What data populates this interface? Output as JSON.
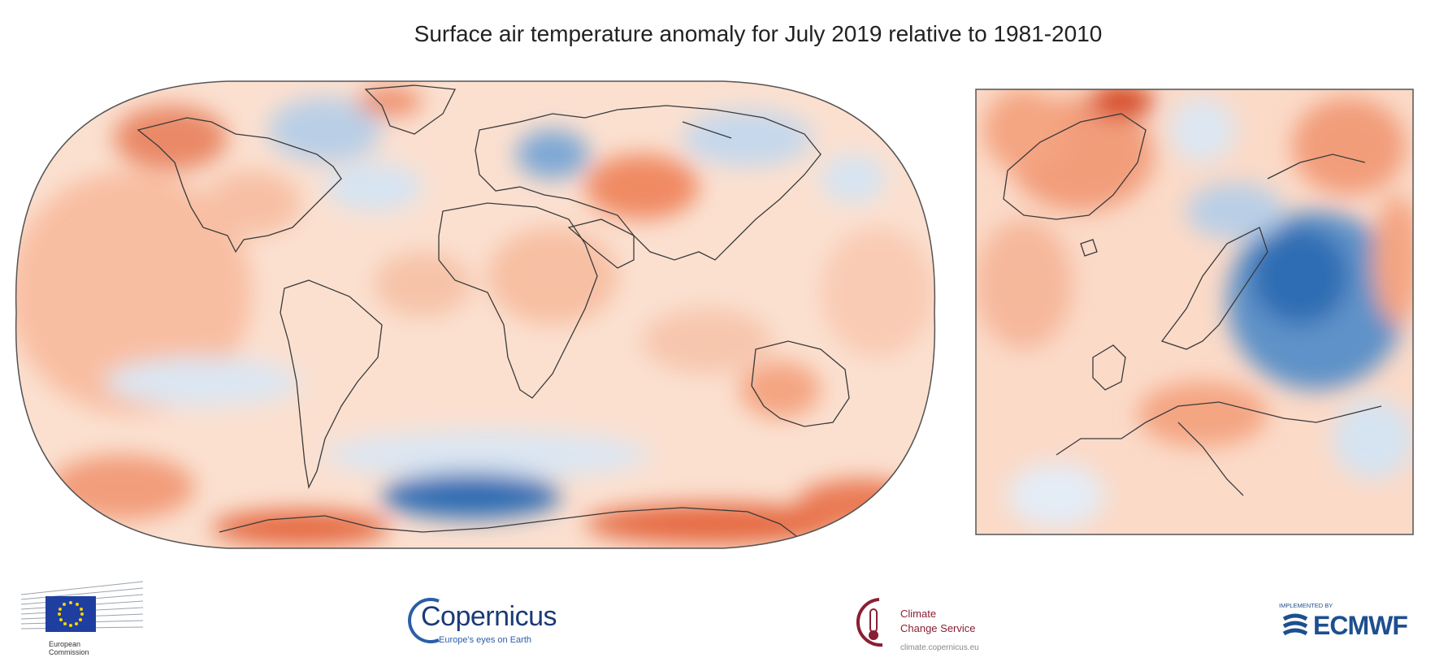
{
  "title": "Surface air temperature anomaly for July 2019 relative to 1981-2010",
  "palette": {
    "warm_strong": "#d4441f",
    "warm": "#f4a582",
    "warm_light": "#fbd8c4",
    "neutral": "#fbeee6",
    "cool_light": "#d6e4f2",
    "cool": "#92b8dc",
    "cool_strong": "#2e6db3",
    "coast": "#3a3a3a"
  },
  "logos": {
    "european_commission": {
      "line1": "European",
      "line2": "Commission"
    },
    "copernicus": {
      "word": "Copernicus",
      "tagline": "Europe's eyes on Earth"
    },
    "climate_change_service": {
      "line1": "Climate",
      "line2": "Change Service",
      "url": "climate.copernicus.eu"
    },
    "ecmwf": {
      "implemented_by": "IMPLEMENTED BY",
      "word": "ECMWF"
    }
  }
}
